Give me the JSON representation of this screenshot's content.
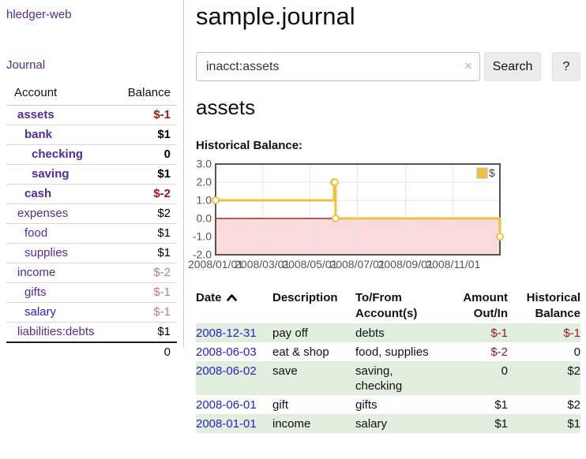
{
  "colors": {
    "link-purple": "#542b97",
    "link-blue": "#2323cc",
    "neg-strong": "#971717",
    "neg-muted": "#bd7d7d",
    "row-green": "#e2efdf",
    "series-yellow": "#edc240",
    "region-pink": "#fadada",
    "zero-line-red": "#8b0000",
    "grid-gray": "#e6e6e6",
    "axis-text": "#545454",
    "plot-border": "#555555"
  },
  "sidebar": {
    "app_title": "hledger-web",
    "nav": {
      "journal_label": "Journal"
    },
    "accounts": {
      "headers": [
        "Account",
        "Balance"
      ],
      "rows": [
        {
          "name": "assets",
          "depth": 1,
          "bold": true,
          "balance": "$-1",
          "balance_style": "neg-strong"
        },
        {
          "name": "bank",
          "depth": 2,
          "bold": true,
          "balance": "$1",
          "balance_style": "pos"
        },
        {
          "name": "checking",
          "depth": 3,
          "bold": true,
          "balance": "0",
          "balance_style": "pos"
        },
        {
          "name": "saving",
          "depth": 3,
          "bold": true,
          "balance": "$1",
          "balance_style": "pos"
        },
        {
          "name": "cash",
          "depth": 2,
          "bold": true,
          "balance": "$-2",
          "balance_style": "neg-strong"
        },
        {
          "name": "expenses",
          "depth": 1,
          "bold": false,
          "balance": "$2",
          "balance_style": "pos"
        },
        {
          "name": "food",
          "depth": 2,
          "bold": false,
          "balance": "$1",
          "balance_style": "pos"
        },
        {
          "name": "supplies",
          "depth": 2,
          "bold": false,
          "balance": "$1",
          "balance_style": "pos"
        },
        {
          "name": "income",
          "depth": 1,
          "bold": false,
          "balance": "$-2",
          "balance_style": "neg-muted"
        },
        {
          "name": "gifts",
          "depth": 2,
          "bold": false,
          "balance": "$-1",
          "balance_style": "neg-muted"
        },
        {
          "name": "salary",
          "depth": 2,
          "bold": false,
          "balance": "$-1",
          "balance_style": "neg-muted",
          "link_color": "blue"
        },
        {
          "name": "liabilities:debts",
          "depth": 1,
          "bold": false,
          "balance": "$1",
          "balance_style": "pos"
        }
      ],
      "total": "0"
    }
  },
  "header": {
    "title": "sample.journal"
  },
  "search": {
    "value": "inacct:assets",
    "clear_icon_glyph": "×",
    "button_label": "Search",
    "help_label": "?"
  },
  "account_page": {
    "heading": "assets"
  },
  "chart_data": {
    "type": "line",
    "title": "Historical Balance:",
    "x_range": [
      "2008-01-01",
      "2008-12-31"
    ],
    "ylim": [
      -2,
      3
    ],
    "yticks": [
      {
        "value": 3,
        "label": "3.0"
      },
      {
        "value": 2,
        "label": "2.0"
      },
      {
        "value": 1,
        "label": "1.0"
      },
      {
        "value": 0,
        "label": "0.0"
      },
      {
        "value": -1,
        "label": "-1.0"
      },
      {
        "value": -2,
        "label": "-2.0"
      }
    ],
    "xticks": [
      {
        "date": "2008-01-01",
        "label": "2008/01/01"
      },
      {
        "date": "2008-03-01",
        "label": "2008/03/01"
      },
      {
        "date": "2008-05-01",
        "label": "2008/05/01"
      },
      {
        "date": "2008-07-01",
        "label": "2008/07/01"
      },
      {
        "date": "2008-09-01",
        "label": "2008/09/01"
      },
      {
        "date": "2008-11-01",
        "label": "2008/11/01"
      }
    ],
    "series": [
      {
        "name": "$",
        "step": true,
        "points": [
          {
            "date": "2008-01-01",
            "value": 1
          },
          {
            "date": "2008-06-01",
            "value": 2
          },
          {
            "date": "2008-06-02",
            "value": 2
          },
          {
            "date": "2008-06-03",
            "value": 0
          },
          {
            "date": "2008-12-31",
            "value": -1
          }
        ]
      }
    ],
    "legend": {
      "label": "$",
      "position": "top-right"
    },
    "grid": true,
    "negative_region_shaded": true
  },
  "register": {
    "headers": [
      {
        "key": "date",
        "lines": [
          "Date"
        ],
        "align": "left",
        "sort": "asc",
        "sortable": true
      },
      {
        "key": "description",
        "lines": [
          "Description"
        ],
        "align": "left"
      },
      {
        "key": "accounts",
        "lines": [
          "To/From",
          "Account(s)"
        ],
        "align": "left"
      },
      {
        "key": "amount",
        "lines": [
          "Amount",
          "Out/In"
        ],
        "align": "right"
      },
      {
        "key": "balance",
        "lines": [
          "Historical",
          "Balance"
        ],
        "align": "right"
      }
    ],
    "rows": [
      {
        "date": "2008-12-31",
        "description": "pay off",
        "accounts_lines": [
          "debts"
        ],
        "amount": "$-1",
        "amount_negative": true,
        "balance": "$-1",
        "balance_negative": true
      },
      {
        "date": "2008-06-03",
        "description": "eat & shop",
        "accounts_lines": [
          "food, supplies"
        ],
        "amount": "$-2",
        "amount_negative": true,
        "balance": "0",
        "balance_negative": false
      },
      {
        "date": "2008-06-02",
        "description": "save",
        "accounts_lines": [
          "saving,",
          "checking"
        ],
        "amount": "0",
        "amount_negative": false,
        "balance": "$2",
        "balance_negative": false
      },
      {
        "date": "2008-06-01",
        "description": "gift",
        "accounts_lines": [
          "gifts"
        ],
        "amount": "$1",
        "amount_negative": false,
        "balance": "$2",
        "balance_negative": false
      },
      {
        "date": "2008-01-01",
        "description": "income",
        "accounts_lines": [
          "salary"
        ],
        "amount": "$1",
        "amount_negative": false,
        "balance": "$1",
        "balance_negative": false
      }
    ]
  }
}
